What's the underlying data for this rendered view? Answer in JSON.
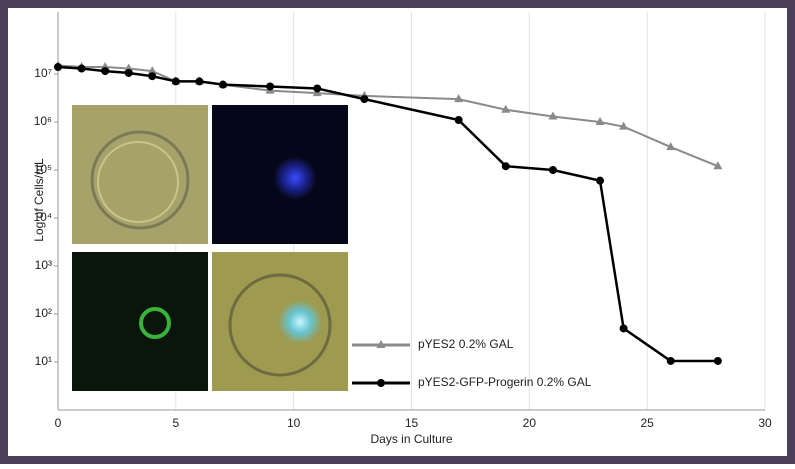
{
  "chart_data": {
    "type": "line",
    "xlabel": "Days in Culture",
    "ylabel": "Log of Cells/mL",
    "xlim": [
      0,
      30
    ],
    "xticks": [
      0,
      5,
      10,
      15,
      20,
      25,
      30
    ],
    "ylim": [
      1,
      100000000
    ],
    "log_y": true,
    "yticks": [
      {
        "value": 10,
        "label": "10¹"
      },
      {
        "value": 100,
        "label": "10²"
      },
      {
        "value": 1000,
        "label": "10³"
      },
      {
        "value": 10000,
        "label": "10⁴"
      },
      {
        "value": 100000,
        "label": "10⁵"
      },
      {
        "value": 1000000,
        "label": "10⁶"
      },
      {
        "value": 10000000,
        "label": "10⁷"
      }
    ],
    "grid": true,
    "series": [
      {
        "name": "pYES2 0.2% GAL",
        "color": "#8a8a8a",
        "marker": "triangle",
        "x": [
          0,
          1,
          2,
          3,
          4,
          5,
          6,
          7,
          9,
          11,
          13,
          17,
          19,
          21,
          23,
          24,
          26,
          28
        ],
        "values": [
          15000000,
          14000000,
          14000000,
          13000000,
          11500000,
          7000000,
          7000000,
          6000000,
          4500000,
          4000000,
          3500000,
          3000000,
          1800000,
          1300000,
          1000000,
          800000,
          300000,
          120000
        ]
      },
      {
        "name": "pYES2-GFP-Progerin 0.2% GAL",
        "color": "#000000",
        "marker": "circle",
        "x": [
          0,
          1,
          2,
          3,
          4,
          5,
          6,
          7,
          9,
          11,
          13,
          17,
          19,
          21,
          23,
          24,
          26,
          28
        ],
        "values": [
          14000000,
          13000000,
          11500000,
          10500000,
          9000000,
          7000000,
          7000000,
          6000000,
          5500000,
          5000000,
          3000000,
          1100000,
          120000,
          100000,
          60000,
          50,
          10.5,
          10.5
        ]
      }
    ]
  }
}
